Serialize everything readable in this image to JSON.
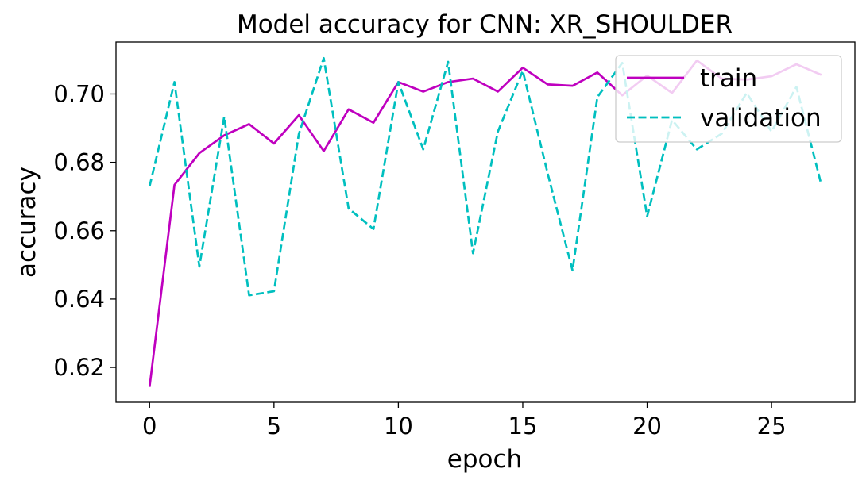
{
  "chart_data": {
    "type": "line",
    "title": "Model accuracy for CNN: XR_SHOULDER",
    "xlabel": "epoch",
    "ylabel": "accuracy",
    "xlim": [
      -1.35,
      28.35
    ],
    "ylim": [
      0.6098,
      0.7152
    ],
    "xticks": [
      0,
      5,
      10,
      15,
      20,
      25
    ],
    "yticks": [
      0.62,
      0.64,
      0.66,
      0.68,
      0.7
    ],
    "ytick_labels": [
      "0.62",
      "0.64",
      "0.66",
      "0.68",
      "0.70"
    ],
    "grid": false,
    "legend_position": "top-right",
    "x": [
      0,
      1,
      2,
      3,
      4,
      5,
      6,
      7,
      8,
      9,
      10,
      11,
      12,
      13,
      14,
      15,
      16,
      17,
      18,
      19,
      20,
      21,
      22,
      23,
      24,
      25,
      26,
      27
    ],
    "series": [
      {
        "name": "train",
        "color": "#bf00bf",
        "style": "solid",
        "values": [
          0.6143,
          0.6734,
          0.6827,
          0.6879,
          0.6912,
          0.6855,
          0.6938,
          0.6833,
          0.6955,
          0.6916,
          0.7035,
          0.7007,
          0.7035,
          0.7045,
          0.7007,
          0.7077,
          0.7028,
          0.7024,
          0.7063,
          0.6996,
          0.7054,
          0.7003,
          0.7098,
          0.7045,
          0.7042,
          0.7052,
          0.7087,
          0.7056
        ]
      },
      {
        "name": "validation",
        "color": "#00bfbf",
        "style": "dashed",
        "values": [
          0.673,
          0.7035,
          0.6495,
          0.6934,
          0.6411,
          0.6423,
          0.6883,
          0.7105,
          0.6665,
          0.6605,
          0.7035,
          0.6838,
          0.7094,
          0.6534,
          0.689,
          0.7068,
          0.6768,
          0.6484,
          0.6991,
          0.7091,
          0.6642,
          0.6924,
          0.6838,
          0.6884,
          0.7003,
          0.689,
          0.7021,
          0.6735
        ]
      }
    ]
  }
}
